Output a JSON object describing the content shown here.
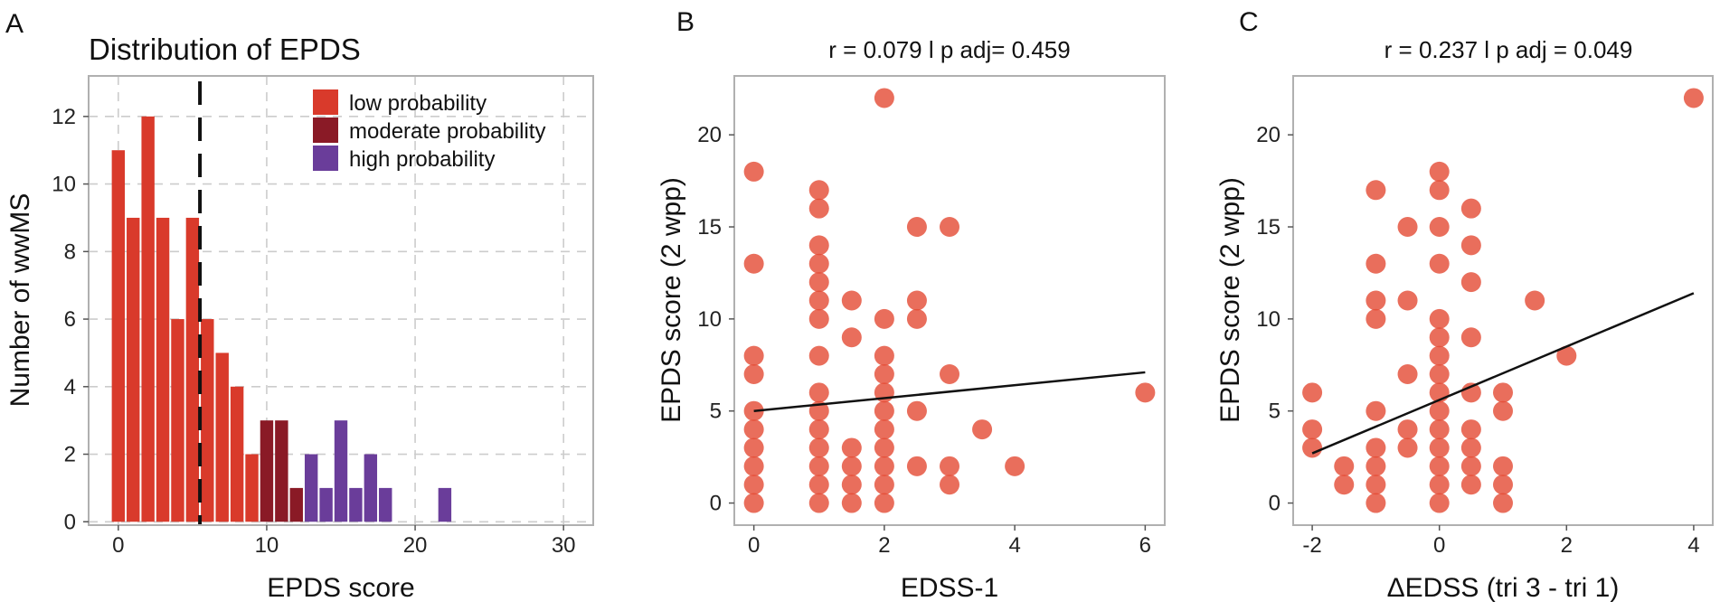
{
  "colors": {
    "low": "#d93a2b",
    "moderate": "#8a1a26",
    "high": "#6a3d9a",
    "dot": "#e34a33",
    "grid": "#cccccc",
    "frame": "#b0b0b0"
  },
  "chart_data": [
    {
      "panel": "A",
      "type": "bar",
      "title": "Distribution of EPDS",
      "xlabel": "EPDS score",
      "ylabel": "Number of wwMS",
      "xlim": [
        -2,
        32
      ],
      "ylim": [
        -0.1,
        13.2
      ],
      "xticks": [
        0,
        10,
        20,
        30
      ],
      "yticks": [
        0,
        2,
        4,
        6,
        8,
        10,
        12
      ],
      "cutoff": 5.5,
      "legend": [
        {
          "key": "low",
          "label": "low probability"
        },
        {
          "key": "moderate",
          "label": "moderate probability"
        },
        {
          "key": "high",
          "label": "high probability"
        }
      ],
      "bars": [
        {
          "x": 0,
          "value": 11,
          "group": "low"
        },
        {
          "x": 1,
          "value": 9,
          "group": "low"
        },
        {
          "x": 2,
          "value": 12,
          "group": "low"
        },
        {
          "x": 3,
          "value": 9,
          "group": "low"
        },
        {
          "x": 4,
          "value": 6,
          "group": "low"
        },
        {
          "x": 5,
          "value": 9,
          "group": "low"
        },
        {
          "x": 6,
          "value": 6,
          "group": "low"
        },
        {
          "x": 7,
          "value": 5,
          "group": "low"
        },
        {
          "x": 8,
          "value": 4,
          "group": "low"
        },
        {
          "x": 9,
          "value": 2,
          "group": "low"
        },
        {
          "x": 10,
          "value": 3,
          "group": "moderate"
        },
        {
          "x": 11,
          "value": 3,
          "group": "moderate"
        },
        {
          "x": 12,
          "value": 1,
          "group": "moderate"
        },
        {
          "x": 13,
          "value": 2,
          "group": "high"
        },
        {
          "x": 14,
          "value": 1,
          "group": "high"
        },
        {
          "x": 15,
          "value": 3,
          "group": "high"
        },
        {
          "x": 16,
          "value": 1,
          "group": "high"
        },
        {
          "x": 17,
          "value": 2,
          "group": "high"
        },
        {
          "x": 18,
          "value": 1,
          "group": "high"
        },
        {
          "x": 22,
          "value": 1,
          "group": "high"
        }
      ]
    },
    {
      "panel": "B",
      "type": "scatter",
      "title": "r = 0.079 l p adj= 0.459",
      "xlabel": "EDSS-1",
      "ylabel": "EPDS score (2 wpp)",
      "xlim": [
        -0.3,
        6.3
      ],
      "ylim": [
        -1.2,
        23.2
      ],
      "xticks": [
        0,
        2,
        4,
        6
      ],
      "yticks": [
        0,
        5,
        10,
        15,
        20
      ],
      "fit": {
        "x0": 0,
        "y0": 5.0,
        "x1": 6,
        "y1": 7.1
      },
      "points": [
        [
          0,
          0
        ],
        [
          0,
          1
        ],
        [
          0,
          2
        ],
        [
          0,
          3
        ],
        [
          0,
          4
        ],
        [
          0,
          5
        ],
        [
          0,
          7
        ],
        [
          0,
          8
        ],
        [
          0,
          13
        ],
        [
          0,
          18
        ],
        [
          1,
          0
        ],
        [
          1,
          1
        ],
        [
          1,
          2
        ],
        [
          1,
          3
        ],
        [
          1,
          4
        ],
        [
          1,
          5
        ],
        [
          1,
          6
        ],
        [
          1,
          8
        ],
        [
          1,
          10
        ],
        [
          1,
          11
        ],
        [
          1,
          12
        ],
        [
          1,
          13
        ],
        [
          1,
          14
        ],
        [
          1,
          16
        ],
        [
          1,
          17
        ],
        [
          1.5,
          0
        ],
        [
          1.5,
          1
        ],
        [
          1.5,
          2
        ],
        [
          1.5,
          3
        ],
        [
          1.5,
          9
        ],
        [
          1.5,
          11
        ],
        [
          2,
          0
        ],
        [
          2,
          1
        ],
        [
          2,
          2
        ],
        [
          2,
          3
        ],
        [
          2,
          4
        ],
        [
          2,
          5
        ],
        [
          2,
          6
        ],
        [
          2,
          7
        ],
        [
          2,
          8
        ],
        [
          2,
          10
        ],
        [
          2,
          22
        ],
        [
          2.5,
          2
        ],
        [
          2.5,
          5
        ],
        [
          2.5,
          10
        ],
        [
          2.5,
          11
        ],
        [
          2.5,
          15
        ],
        [
          3,
          1
        ],
        [
          3,
          2
        ],
        [
          3,
          7
        ],
        [
          3,
          15
        ],
        [
          3.5,
          4
        ],
        [
          4,
          2
        ],
        [
          6,
          6
        ]
      ]
    },
    {
      "panel": "C",
      "type": "scatter",
      "title": "r = 0.237 l p adj = 0.049",
      "xlabel": "ΔEDSS (tri 3 - tri 1)",
      "ylabel": "EPDS score (2 wpp)",
      "xlim": [
        -2.3,
        4.3
      ],
      "ylim": [
        -1.2,
        23.2
      ],
      "xticks": [
        -2,
        0,
        2,
        4
      ],
      "yticks": [
        0,
        5,
        10,
        15,
        20
      ],
      "fit": {
        "x0": -2,
        "y0": 2.7,
        "x1": 4,
        "y1": 11.4
      },
      "points": [
        [
          -2,
          3
        ],
        [
          -2,
          4
        ],
        [
          -2,
          6
        ],
        [
          -1.5,
          1
        ],
        [
          -1.5,
          2
        ],
        [
          -1,
          0
        ],
        [
          -1,
          1
        ],
        [
          -1,
          2
        ],
        [
          -1,
          3
        ],
        [
          -1,
          5
        ],
        [
          -1,
          10
        ],
        [
          -1,
          11
        ],
        [
          -1,
          13
        ],
        [
          -1,
          17
        ],
        [
          -0.5,
          3
        ],
        [
          -0.5,
          4
        ],
        [
          -0.5,
          7
        ],
        [
          -0.5,
          11
        ],
        [
          -0.5,
          15
        ],
        [
          0,
          0
        ],
        [
          0,
          1
        ],
        [
          0,
          2
        ],
        [
          0,
          3
        ],
        [
          0,
          4
        ],
        [
          0,
          5
        ],
        [
          0,
          6
        ],
        [
          0,
          7
        ],
        [
          0,
          8
        ],
        [
          0,
          9
        ],
        [
          0,
          10
        ],
        [
          0,
          13
        ],
        [
          0,
          15
        ],
        [
          0,
          17
        ],
        [
          0,
          18
        ],
        [
          0.5,
          1
        ],
        [
          0.5,
          2
        ],
        [
          0.5,
          3
        ],
        [
          0.5,
          4
        ],
        [
          0.5,
          6
        ],
        [
          0.5,
          9
        ],
        [
          0.5,
          12
        ],
        [
          0.5,
          14
        ],
        [
          0.5,
          16
        ],
        [
          1,
          0
        ],
        [
          1,
          1
        ],
        [
          1,
          2
        ],
        [
          1,
          5
        ],
        [
          1,
          6
        ],
        [
          1.5,
          11
        ],
        [
          2,
          8
        ],
        [
          4,
          22
        ]
      ]
    }
  ]
}
